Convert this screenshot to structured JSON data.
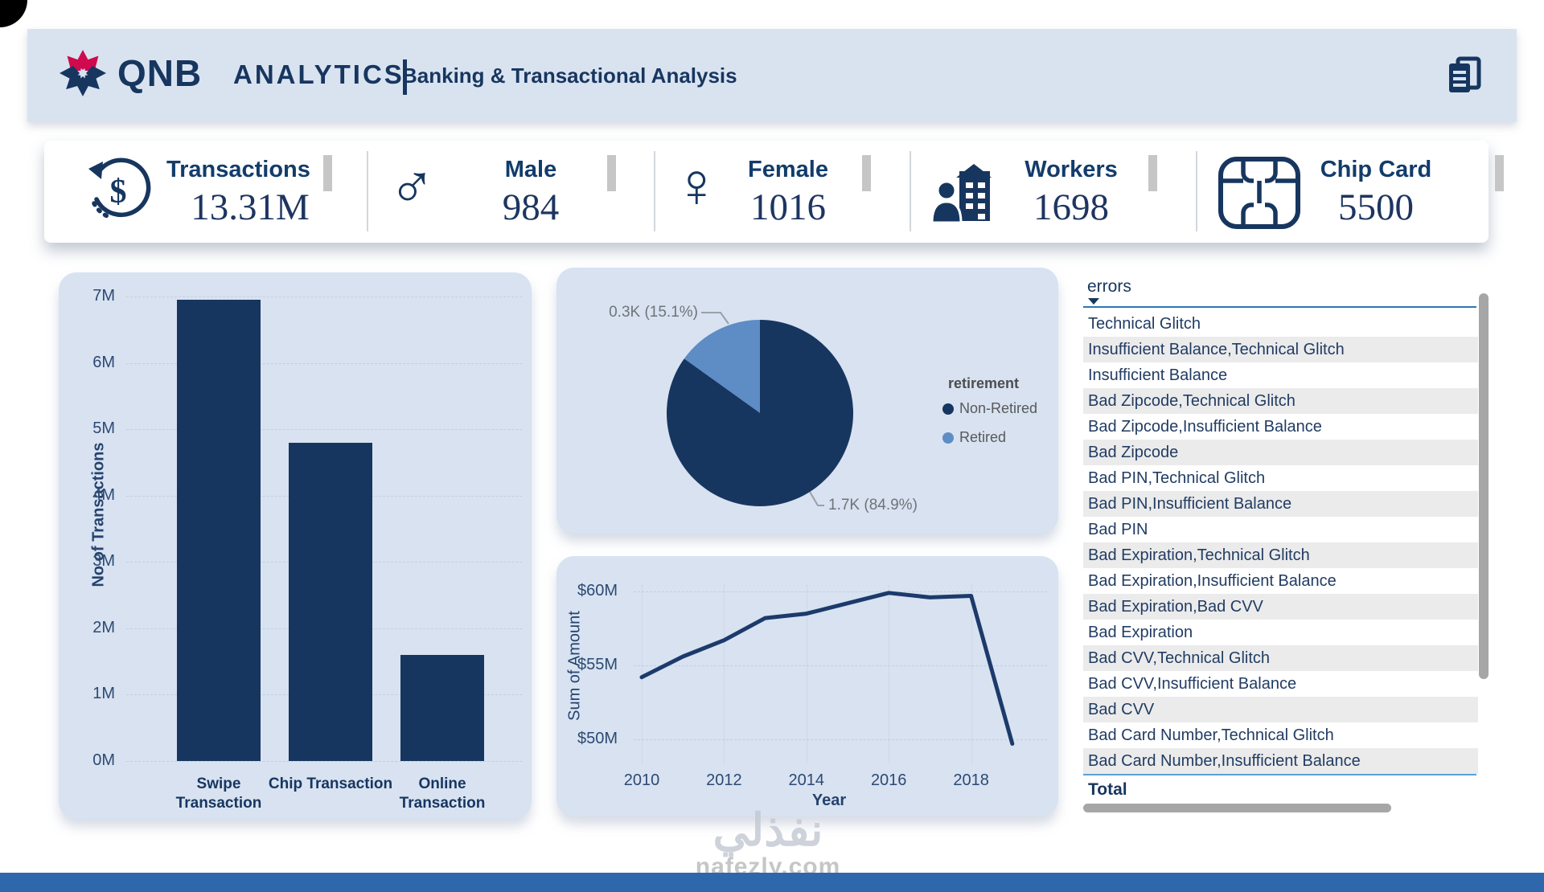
{
  "header": {
    "brand": "QNB",
    "brand_sub": "ANALYTICS",
    "title": "Banking & Transactional Analysis"
  },
  "kpis": [
    {
      "icon": "dollar-refresh-icon",
      "label": "Transactions",
      "value": "13.31M"
    },
    {
      "icon": "male-icon",
      "glyph": "♂",
      "label": "Male",
      "value": "984"
    },
    {
      "icon": "female-icon",
      "glyph": "♀",
      "label": "Female",
      "value": "1016"
    },
    {
      "icon": "workers-icon",
      "label": "Workers",
      "value": "1698"
    },
    {
      "icon": "chip-card-icon",
      "label": "Chip Card",
      "value": "5500"
    }
  ],
  "chart_data": [
    {
      "type": "bar",
      "categories": [
        "Swipe Transaction",
        "Chip Transaction",
        "Online Transaction"
      ],
      "values": [
        6.95,
        4.8,
        1.6
      ],
      "unit": "M",
      "ylabel": "No of Transactions",
      "y_ticks": [
        "7M",
        "6M",
        "5M",
        "4M",
        "3M",
        "2M",
        "1M",
        "0M"
      ],
      "y_tick_values": [
        7,
        6,
        5,
        4,
        3,
        2,
        1,
        0
      ],
      "ylim": [
        0,
        7
      ],
      "grid": "dashed horizontal",
      "bar_color": "#17365f"
    },
    {
      "type": "pie",
      "legend_title": "retirement",
      "legend_position": "right",
      "slices": [
        {
          "label": "Non-Retired",
          "value_label": "1.7K (84.9%)",
          "pct": 84.9,
          "color": "#17365f"
        },
        {
          "label": "Retired",
          "value_label": "0.3K (15.1%)",
          "pct": 15.1,
          "color": "#5e8cc4"
        }
      ]
    },
    {
      "type": "line",
      "x": [
        2010,
        2011,
        2012,
        2013,
        2014,
        2015,
        2016,
        2017,
        2018,
        2019
      ],
      "values": [
        54.2,
        55.6,
        56.7,
        58.2,
        58.5,
        59.2,
        59.9,
        59.6,
        59.7,
        49.7
      ],
      "xlabel": "Year",
      "ylabel": "Sum of Amount",
      "x_ticks": [
        "2010",
        "2012",
        "2014",
        "2016",
        "2018"
      ],
      "x_tick_values": [
        2010,
        2012,
        2014,
        2016,
        2018
      ],
      "y_ticks": [
        "$60M",
        "$55M",
        "$50M"
      ],
      "y_tick_values": [
        60,
        55,
        50
      ],
      "grid": "dotted",
      "line_color": "#1c3a6b"
    }
  ],
  "errors_panel": {
    "header": "errors",
    "rows": [
      "Technical Glitch",
      "Insufficient Balance,Technical Glitch",
      "Insufficient Balance",
      "Bad Zipcode,Technical Glitch",
      "Bad Zipcode,Insufficient Balance",
      "Bad Zipcode",
      "Bad PIN,Technical Glitch",
      "Bad PIN,Insufficient Balance",
      "Bad PIN",
      "Bad Expiration,Technical Glitch",
      "Bad Expiration,Insufficient Balance",
      "Bad Expiration,Bad CVV",
      "Bad Expiration",
      "Bad CVV,Technical Glitch",
      "Bad CVV,Insufficient Balance",
      "Bad CVV",
      "Bad Card Number,Technical Glitch",
      "Bad Card Number,Insufficient Balance"
    ],
    "total_label": "Total"
  },
  "watermark": {
    "arabic": "نفذلي",
    "site": "nafezly.com"
  },
  "colors": {
    "navy": "#17365f",
    "light_blue_slice": "#5e8cc4",
    "card_bg": "#d8e2f1",
    "header_bg": "#d9e3f0",
    "stripe": "#ebebeb",
    "accent_underline": "#2e75b6",
    "total_line": "#5aa2d8",
    "scrollbar": "#a6a6a6",
    "logo_red": "#cf0a4e",
    "bottom_bar": "#2f67ad",
    "kpi_bar_gray": "#c6c6c6"
  }
}
